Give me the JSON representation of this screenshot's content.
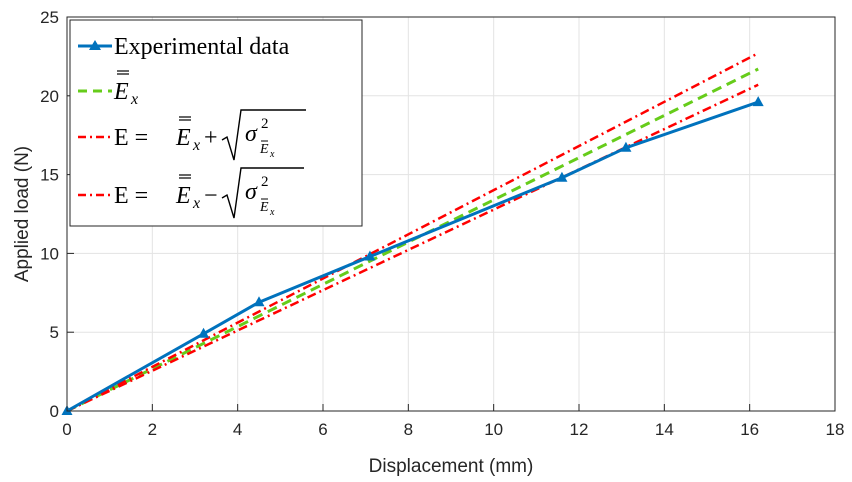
{
  "chart_data": {
    "type": "line",
    "xlabel": "Displacement (mm)",
    "ylabel": "Applied load (N)",
    "xlim": [
      0,
      18
    ],
    "ylim": [
      0,
      25
    ],
    "xticks": [
      "0",
      "2",
      "4",
      "6",
      "8",
      "10",
      "12",
      "14",
      "16",
      "18"
    ],
    "yticks": [
      "0",
      "5",
      "10",
      "15",
      "20",
      "25"
    ],
    "grid": true,
    "legend_position": "top-left",
    "series": [
      {
        "name": "Experimental data",
        "style": "solid-triangle-markers",
        "color": "#0072bd",
        "x": [
          0,
          3.2,
          4.5,
          7.1,
          11.6,
          13.1,
          16.2
        ],
        "y": [
          0,
          4.9,
          6.9,
          9.8,
          14.8,
          16.7,
          19.6
        ]
      },
      {
        "name": "E_x mean",
        "style": "dashed",
        "color": "#66cc1a",
        "x": [
          0,
          16.2
        ],
        "y": [
          0,
          21.7
        ]
      },
      {
        "name": "E = E_x mean + sqrt(variance)",
        "style": "dash-dot",
        "color": "#ff0000",
        "x": [
          0,
          16.2
        ],
        "y": [
          0,
          22.7
        ]
      },
      {
        "name": "E = E_x mean - sqrt(variance)",
        "style": "dash-dot",
        "color": "#ff0000",
        "x": [
          0,
          16.2
        ],
        "y": [
          0,
          20.7
        ]
      }
    ]
  },
  "legend": {
    "entries": [
      {
        "label": "Experimental data"
      },
      {
        "symbol_E": "E",
        "symbol_x": "x"
      },
      {
        "prefix": "E =",
        "symbol_E": "E",
        "symbol_x": "x",
        "op": "+",
        "sigma": "σ",
        "sup": "2",
        "sub_E": "E",
        "sub_x": "x"
      },
      {
        "prefix": "E =",
        "symbol_E": "E",
        "symbol_x": "x",
        "op": "−",
        "sigma": "σ",
        "sup": "2",
        "sub_E": "E",
        "sub_x": "x"
      }
    ]
  }
}
